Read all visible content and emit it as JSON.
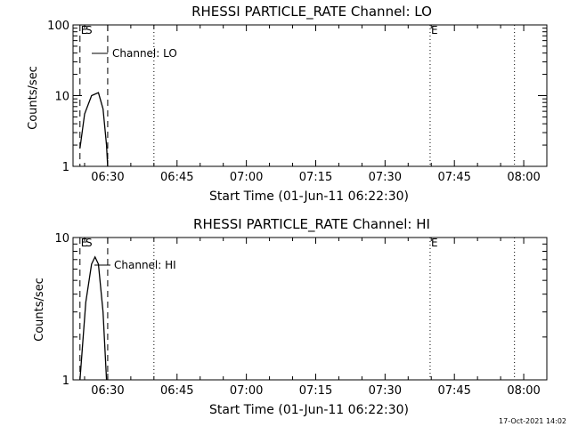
{
  "timestamp": "17-Oct-2021 14:02",
  "chart_data": [
    {
      "type": "line",
      "title": "RHESSI PARTICLE_RATE Channel: LO",
      "xlabel": "Start Time (01-Jun-11 06:22:30)",
      "ylabel": "Counts/sec",
      "y_scale": "log",
      "xlim": [
        "06:22:30",
        "08:05:00"
      ],
      "ylim": [
        1,
        100
      ],
      "x_ticks": [
        "06:30",
        "06:45",
        "07:00",
        "07:15",
        "07:30",
        "07:45",
        "08:00"
      ],
      "y_ticks": [
        "1",
        "10",
        "100"
      ],
      "legend": "Channel: LO",
      "legend_position": "top-left",
      "series": [
        {
          "x": [
            "06:24:00",
            "06:25:00",
            "06:26:30",
            "06:28:00",
            "06:29:00",
            "06:29:45",
            "06:30:00"
          ],
          "values": [
            1.8,
            5.5,
            10.0,
            11.0,
            6.5,
            2.0,
            1.0
          ]
        }
      ],
      "vlines": [
        {
          "time": "06:24:00",
          "style": "dashed",
          "label": "E"
        },
        {
          "time": "06:25:00",
          "style": "none",
          "label": "S"
        },
        {
          "time": "06:30:00",
          "style": "dashed",
          "label": ""
        },
        {
          "time": "06:40:00",
          "style": "dotted",
          "label": ""
        },
        {
          "time": "07:39:45",
          "style": "dotted",
          "label": "E"
        },
        {
          "time": "07:58:00",
          "style": "dotted",
          "label": ""
        }
      ]
    },
    {
      "type": "line",
      "title": "RHESSI PARTICLE_RATE Channel: HI",
      "xlabel": "Start Time (01-Jun-11 06:22:30)",
      "ylabel": "Counts/sec",
      "y_scale": "log",
      "xlim": [
        "06:22:30",
        "08:05:00"
      ],
      "ylim": [
        1,
        10
      ],
      "x_ticks": [
        "06:30",
        "06:45",
        "07:00",
        "07:15",
        "07:30",
        "07:45",
        "08:00"
      ],
      "y_ticks": [
        "1",
        "10"
      ],
      "legend": "Channel: HI",
      "legend_position": "top-left",
      "series": [
        {
          "x": [
            "06:24:00",
            "06:25:15",
            "06:26:30",
            "06:27:15",
            "06:28:00",
            "06:29:00",
            "06:29:45"
          ],
          "values": [
            1.0,
            3.5,
            6.5,
            7.3,
            6.5,
            3.0,
            1.0
          ]
        }
      ],
      "vlines": [
        {
          "time": "06:24:00",
          "style": "dashed",
          "label": "E"
        },
        {
          "time": "06:25:00",
          "style": "none",
          "label": "S"
        },
        {
          "time": "06:30:00",
          "style": "dashed",
          "label": ""
        },
        {
          "time": "06:40:00",
          "style": "dotted",
          "label": ""
        },
        {
          "time": "07:39:45",
          "style": "dotted",
          "label": "E"
        },
        {
          "time": "07:58:00",
          "style": "dotted",
          "label": ""
        }
      ]
    }
  ]
}
